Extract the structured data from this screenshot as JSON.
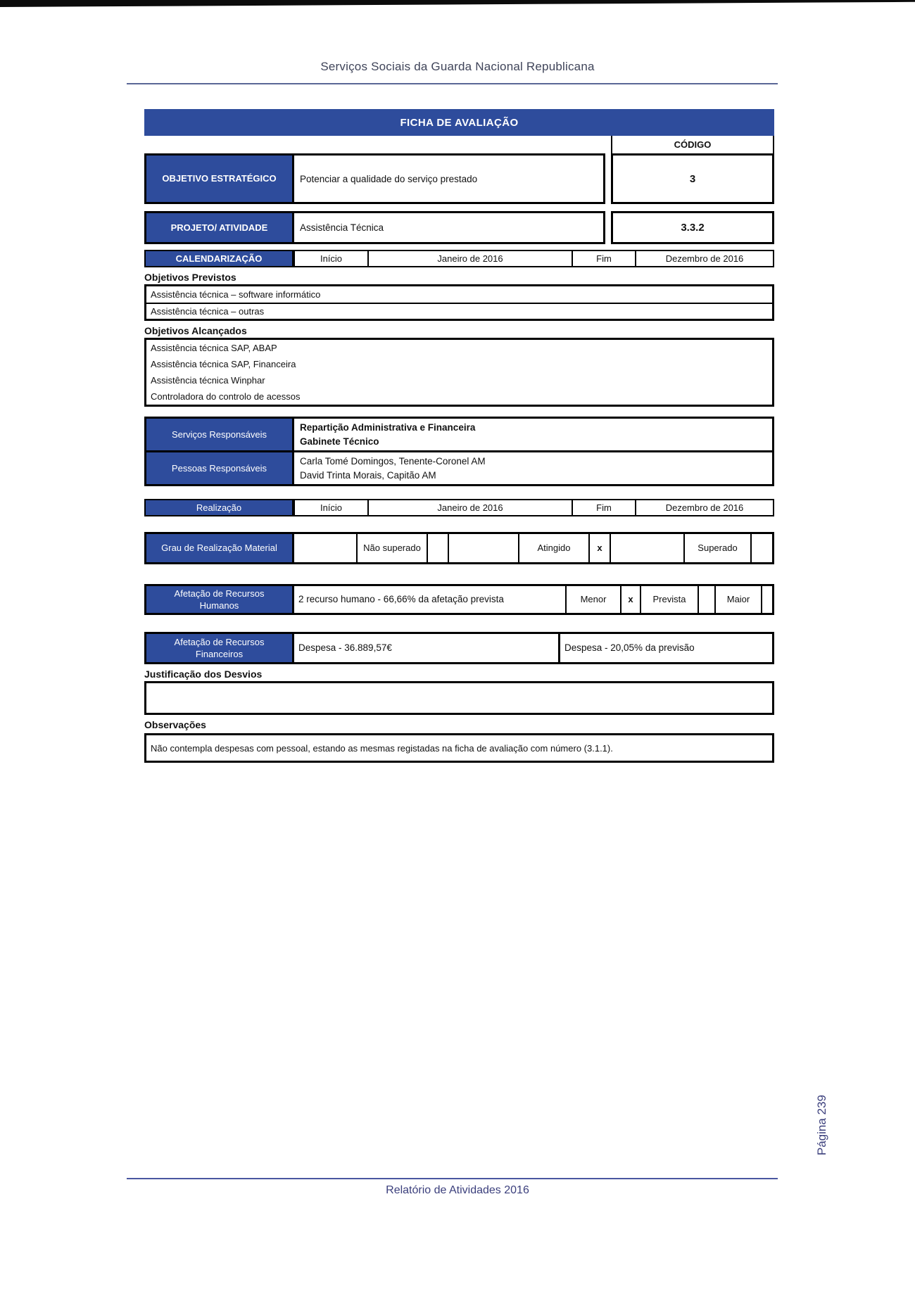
{
  "colors": {
    "accent_navy": "#2e4c9c",
    "footer_navy": "#3b3f7c"
  },
  "header": {
    "title": "Serviços Sociais da Guarda Nacional Republicana"
  },
  "banner": {
    "title": "FICHA DE AVALIAÇÃO"
  },
  "codigo": {
    "header": "CÓDIGO"
  },
  "objetivo_estrategico": {
    "label": "OBJETIVO ESTRATÉGICO",
    "value": "Potenciar a qualidade do serviço prestado",
    "codigo": "3"
  },
  "projeto_atividade": {
    "label": "PROJETO/ ATIVIDADE",
    "value": "Assistência Técnica",
    "codigo": "3.3.2"
  },
  "calendarizacao": {
    "label": "CALENDARIZAÇÃO",
    "inicio_label": "Início",
    "inicio": "Janeiro de 2016",
    "fim_label": "Fim",
    "fim": "Dezembro de 2016"
  },
  "objetivos_previstos": {
    "heading": "Objetivos Previstos",
    "items": [
      "Assistência técnica – software informático",
      "Assistência técnica – outras"
    ]
  },
  "objetivos_alcancados": {
    "heading": "Objetivos Alcançados",
    "items": [
      "Assistência técnica SAP, ABAP",
      "Assistência técnica SAP, Financeira",
      "Assistência técnica Winphar",
      "Controladora do controlo de acessos"
    ]
  },
  "servicos_responsaveis": {
    "label": "Serviços Responsáveis",
    "lines": [
      "Repartição Administrativa e Financeira",
      "Gabinete Técnico"
    ]
  },
  "pessoas_responsaveis": {
    "label": "Pessoas Responsáveis",
    "lines": [
      "Carla Tomé Domingos, Tenente-Coronel AM",
      "David Trinta Morais, Capitão AM"
    ]
  },
  "realizacao": {
    "label": "Realização",
    "inicio_label": "Início",
    "inicio": "Janeiro de 2016",
    "fim_label": "Fim",
    "fim": "Dezembro de 2016"
  },
  "grau_realizacao": {
    "label": "Grau de Realização Material",
    "options": [
      {
        "label": "Não superado",
        "mark": ""
      },
      {
        "label": "Atingido",
        "mark": "x"
      },
      {
        "label": "Superado",
        "mark": ""
      }
    ]
  },
  "recursos_humanos": {
    "label": "Afetação de Recursos Humanos",
    "value": "2 recurso humano - 66,66% da afetação prevista",
    "options": [
      {
        "label": "Menor",
        "mark": "x"
      },
      {
        "label": "Prevista",
        "mark": ""
      },
      {
        "label": "Maior",
        "mark": ""
      }
    ]
  },
  "recursos_financeiros": {
    "label": "Afetação de Recursos Financeiros",
    "despesa": "Despesa - 36.889,57€",
    "previsao": "Despesa - 20,05% da previsão"
  },
  "justificacao": {
    "heading": "Justificação dos Desvios",
    "value": ""
  },
  "observacoes": {
    "heading": "Observações",
    "value": "Não contempla despesas com pessoal, estando as mesmas registadas na ficha de avaliação com número (3.1.1)."
  },
  "footer": {
    "text": "Relatório de Atividades 2016",
    "page_number": "Página 239"
  }
}
